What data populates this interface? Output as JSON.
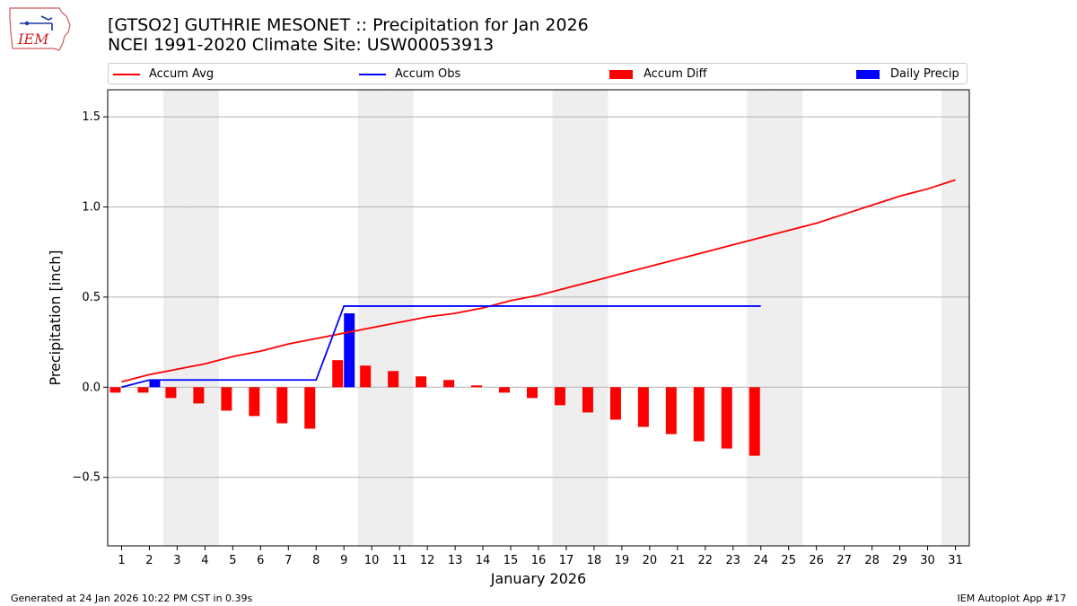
{
  "header": {
    "logo_text": "IEM",
    "title_line1": "[GTSO2] GUTHRIE MESONET :: Precipitation for Jan 2026",
    "title_line2": "NCEI 1991-2020 Climate Site: USW00053913"
  },
  "legend": {
    "items": [
      {
        "label": "Accum Avg",
        "kind": "line",
        "color": "#ff0000"
      },
      {
        "label": "Accum Obs",
        "kind": "line",
        "color": "#0000ff"
      },
      {
        "label": "Accum Diff",
        "kind": "bar",
        "color": "#ff0000"
      },
      {
        "label": "Daily Precip",
        "kind": "bar",
        "color": "#0000ff"
      }
    ]
  },
  "footer": {
    "left": "Generated at 24 Jan 2026 10:22 PM CST in 0.39s",
    "right": "IEM Autoplot App #17"
  },
  "chart_data": {
    "type": "bar",
    "xlabel": "January 2026",
    "ylabel": "Precipitation [inch]",
    "xlim": [
      0.5,
      31.5
    ],
    "ylim": [
      -0.88,
      1.65
    ],
    "yticks": [
      -0.5,
      0.0,
      0.5,
      1.0,
      1.5
    ],
    "ytick_labels": [
      "−0.5",
      "0.0",
      "0.5",
      "1.0",
      "1.5"
    ],
    "x": [
      1,
      2,
      3,
      4,
      5,
      6,
      7,
      8,
      9,
      10,
      11,
      12,
      13,
      14,
      15,
      16,
      17,
      18,
      19,
      20,
      21,
      22,
      23,
      24,
      25,
      26,
      27,
      28,
      29,
      30,
      31
    ],
    "grid": "horizontal",
    "weekend_days": [
      3,
      4,
      10,
      11,
      17,
      18,
      24,
      25,
      31
    ],
    "weekend_color": "#eeeeee",
    "series": [
      {
        "name": "Accum Avg",
        "kind": "line",
        "color": "#ff0000",
        "x": [
          1,
          2,
          3,
          4,
          5,
          6,
          7,
          8,
          9,
          10,
          11,
          12,
          13,
          14,
          15,
          16,
          17,
          18,
          19,
          20,
          21,
          22,
          23,
          24,
          25,
          26,
          27,
          28,
          29,
          30,
          31
        ],
        "values": [
          0.03,
          0.07,
          0.1,
          0.13,
          0.17,
          0.2,
          0.24,
          0.27,
          0.3,
          0.33,
          0.36,
          0.39,
          0.41,
          0.44,
          0.48,
          0.51,
          0.55,
          0.59,
          0.63,
          0.67,
          0.71,
          0.75,
          0.79,
          0.83,
          0.87,
          0.91,
          0.96,
          1.01,
          1.06,
          1.1,
          1.15
        ]
      },
      {
        "name": "Accum Obs",
        "kind": "line",
        "color": "#0000ff",
        "x": [
          1,
          2,
          3,
          4,
          5,
          6,
          7,
          8,
          9,
          10,
          11,
          12,
          13,
          14,
          15,
          16,
          17,
          18,
          19,
          20,
          21,
          22,
          23,
          24
        ],
        "values": [
          0.0,
          0.04,
          0.04,
          0.04,
          0.04,
          0.04,
          0.04,
          0.04,
          0.45,
          0.45,
          0.45,
          0.45,
          0.45,
          0.45,
          0.45,
          0.45,
          0.45,
          0.45,
          0.45,
          0.45,
          0.45,
          0.45,
          0.45,
          0.45
        ]
      },
      {
        "name": "Accum Diff",
        "kind": "bar",
        "color": "#ff0000",
        "x": [
          1,
          2,
          3,
          4,
          5,
          6,
          7,
          8,
          9,
          10,
          11,
          12,
          13,
          14,
          15,
          16,
          17,
          18,
          19,
          20,
          21,
          22,
          23,
          24
        ],
        "values": [
          -0.03,
          -0.03,
          -0.06,
          -0.09,
          -0.13,
          -0.16,
          -0.2,
          -0.23,
          0.15,
          0.12,
          0.09,
          0.06,
          0.04,
          0.01,
          -0.03,
          -0.06,
          -0.1,
          -0.14,
          -0.18,
          -0.22,
          -0.26,
          -0.3,
          -0.34,
          -0.38
        ]
      },
      {
        "name": "Daily Precip",
        "kind": "bar",
        "color": "#0000ff",
        "x": [
          1,
          2,
          3,
          4,
          5,
          6,
          7,
          8,
          9,
          10,
          11,
          12,
          13,
          14,
          15,
          16,
          17,
          18,
          19,
          20,
          21,
          22,
          23,
          24
        ],
        "values": [
          0,
          0.04,
          0,
          0,
          0,
          0,
          0,
          0,
          0.41,
          0,
          0,
          0,
          0,
          0,
          0,
          0,
          0,
          0,
          0,
          0,
          0,
          0,
          0,
          0
        ]
      }
    ]
  }
}
